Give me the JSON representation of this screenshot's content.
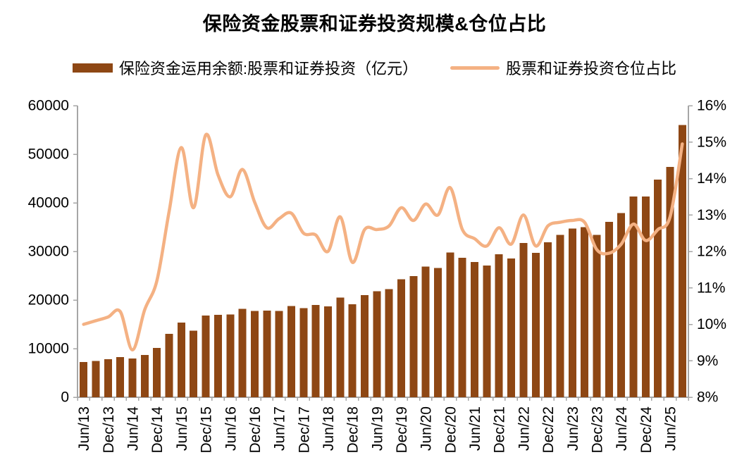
{
  "title": "保险资金股票和证券投资规模&仓位占比",
  "legend": [
    {
      "label": "保险资金运用余额:股票和证券投资（亿元）",
      "type": "bar",
      "color": "#8E4714"
    },
    {
      "label": "股票和证券投资仓位占比",
      "type": "line",
      "color": "#F4B183"
    }
  ],
  "colors": {
    "bar": "#8E4714",
    "line": "#F4B183",
    "axis": "#A6A6A6",
    "text": "#000000"
  },
  "chart_data": {
    "type": "bar",
    "title": "保险资金股票和证券投资规模&仓位占比",
    "categories": [
      "Jun/13",
      "Sep/13",
      "Dec/13",
      "Mar/14",
      "Jun/14",
      "Sep/14",
      "Dec/14",
      "Mar/15",
      "Jun/15",
      "Sep/15",
      "Dec/15",
      "Mar/16",
      "Jun/16",
      "Sep/16",
      "Dec/16",
      "Mar/17",
      "Jun/17",
      "Sep/17",
      "Dec/17",
      "Mar/18",
      "Jun/18",
      "Sep/18",
      "Dec/18",
      "Mar/19",
      "Jun/19",
      "Sep/19",
      "Dec/19",
      "Mar/20",
      "Jun/20",
      "Sep/20",
      "Dec/20",
      "Mar/21",
      "Jun/21",
      "Sep/21",
      "Dec/21",
      "Mar/22",
      "Jun/22",
      "Sep/22",
      "Dec/22",
      "Mar/23",
      "Jun/23",
      "Sep/23",
      "Dec/23",
      "Mar/24",
      "Jun/24",
      "Sep/24",
      "Dec/24",
      "Mar/25",
      "Jun/25",
      "Sep/25"
    ],
    "x_tick_labels": [
      "Jun/13",
      "Dec/13",
      "Jun/14",
      "Dec/14",
      "Jun/15",
      "Dec/15",
      "Jun/16",
      "Dec/16",
      "Jun/17",
      "Dec/17",
      "Jun/18",
      "Dec/18",
      "Jun/19",
      "Dec/19",
      "Jun/20",
      "Dec/20",
      "Jun/21",
      "Dec/21",
      "Jun/22",
      "Dec/22",
      "Jun/23",
      "Dec/23",
      "Jun/24",
      "Dec/24",
      "Jun/25"
    ],
    "series": [
      {
        "name": "保险资金运用余额:股票和证券投资（亿元）",
        "type": "bar",
        "axis": "left",
        "color": "#8E4714",
        "values": [
          7230,
          7460,
          7800,
          8280,
          7950,
          8670,
          10170,
          13030,
          15360,
          13660,
          16810,
          16960,
          17050,
          18160,
          17770,
          17800,
          17770,
          18750,
          18350,
          19000,
          18700,
          20500,
          19100,
          21050,
          21800,
          22250,
          24300,
          24900,
          26900,
          26600,
          29800,
          28670,
          27800,
          27130,
          29450,
          28580,
          31770,
          29740,
          31920,
          33380,
          34730,
          34970,
          33380,
          36080,
          37880,
          41270,
          41270,
          44750,
          47410,
          56040
        ]
      },
      {
        "name": "股票和证券投资仓位占比",
        "type": "line",
        "axis": "right",
        "color": "#F4B183",
        "values": [
          10.0,
          10.1,
          10.2,
          10.35,
          9.3,
          10.4,
          11.2,
          13.1,
          14.85,
          13.2,
          15.2,
          14.1,
          13.5,
          14.25,
          13.35,
          12.65,
          12.9,
          13.05,
          12.5,
          12.45,
          12.0,
          12.95,
          11.7,
          12.6,
          12.6,
          12.7,
          13.2,
          12.85,
          13.3,
          13.0,
          13.75,
          12.6,
          12.35,
          12.15,
          12.65,
          12.2,
          13.0,
          12.15,
          12.7,
          12.8,
          12.85,
          12.8,
          12.05,
          11.95,
          12.2,
          12.75,
          12.3,
          12.6,
          12.95,
          14.95
        ]
      }
    ],
    "left_axis": {
      "min": 0,
      "max": 60000,
      "step": 10000,
      "tick_labels": [
        "0",
        "10000",
        "20000",
        "30000",
        "40000",
        "50000",
        "60000"
      ]
    },
    "right_axis": {
      "min": 8,
      "max": 16,
      "step": 1,
      "tick_labels": [
        "8%",
        "9%",
        "10%",
        "11%",
        "12%",
        "13%",
        "14%",
        "15%",
        "16%"
      ]
    },
    "grid": false,
    "legend_position": "top"
  }
}
